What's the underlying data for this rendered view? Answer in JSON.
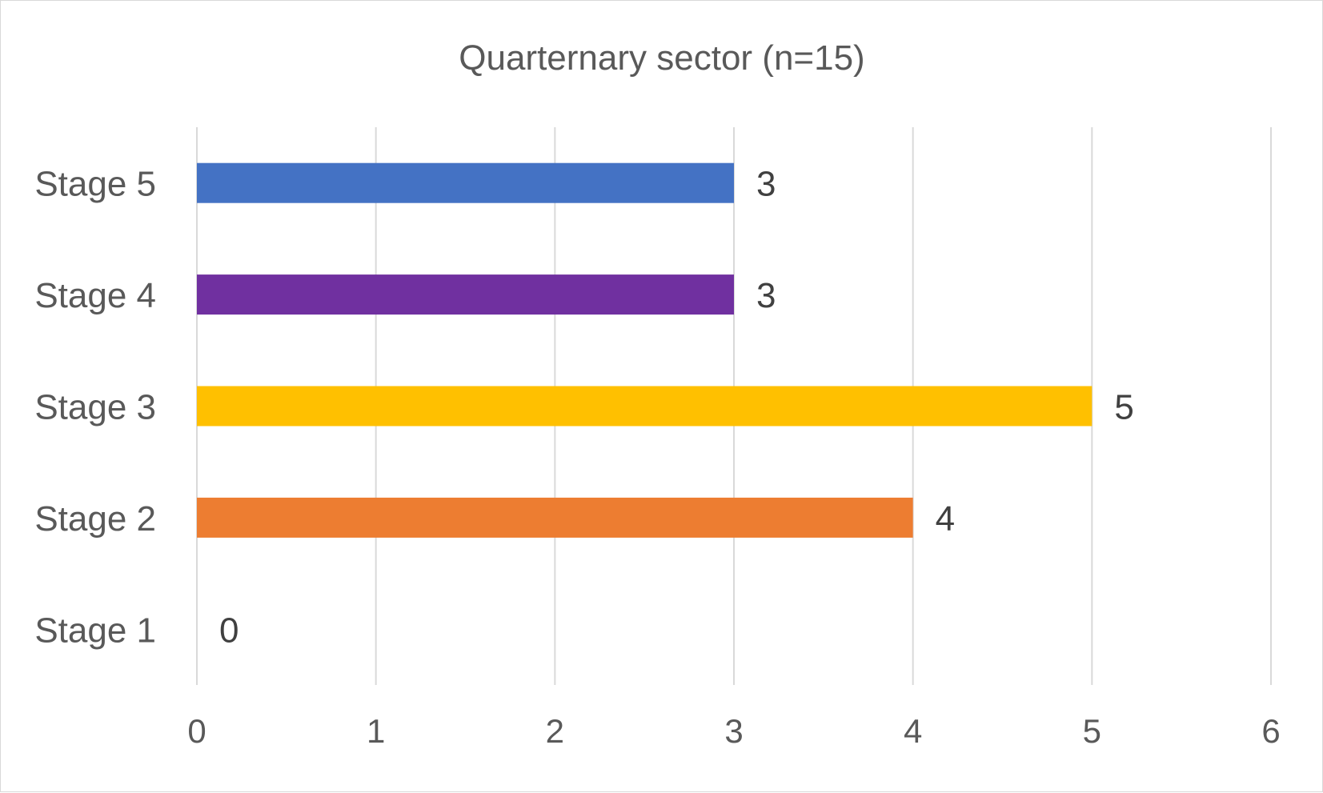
{
  "chart_data": {
    "type": "bar",
    "orientation": "horizontal",
    "title": "Quarternary sector (n=15)",
    "xlabel": "",
    "ylabel": "",
    "categories": [
      "Stage 1",
      "Stage 2",
      "Stage 3",
      "Stage 4",
      "Stage 5"
    ],
    "values": [
      0,
      4,
      5,
      3,
      3
    ],
    "data_labels": [
      "0",
      "4",
      "5",
      "3",
      "3"
    ],
    "colors": [
      "#4472C4",
      "#ED7D31",
      "#FFC000",
      "#7030A0",
      "#4472C4"
    ],
    "xlim": [
      0,
      6
    ],
    "x_ticks": [
      "0",
      "1",
      "2",
      "3",
      "4",
      "5",
      "6"
    ],
    "grid": "vertical",
    "legend": "none"
  }
}
